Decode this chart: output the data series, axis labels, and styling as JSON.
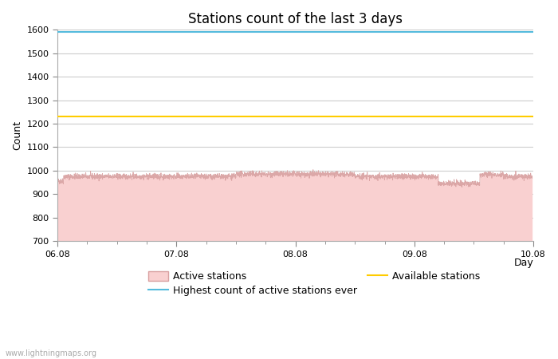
{
  "title": "Stations count of the last 3 days",
  "xlabel": "Day",
  "ylabel": "Count",
  "ylim": [
    700,
    1600
  ],
  "yticks": [
    700,
    800,
    900,
    1000,
    1100,
    1200,
    1300,
    1400,
    1500,
    1600
  ],
  "x_start": 0,
  "x_end": 4,
  "x_ticks": [
    0,
    1,
    2,
    3,
    4
  ],
  "x_tick_labels": [
    "06.08",
    "07.08",
    "08.08",
    "09.08",
    "10.08"
  ],
  "highest_ever_value": 1590,
  "available_stations_value": 1232,
  "active_stations_base": 700,
  "active_stations_color": "#f9d0d0",
  "active_stations_line_color": "#d8a0a0",
  "highest_color": "#55bbdd",
  "available_color": "#ffcc00",
  "background_color": "#ffffff",
  "grid_color": "#cccccc",
  "watermark": "www.lightningmaps.org",
  "title_fontsize": 12,
  "label_fontsize": 9,
  "tick_fontsize": 8,
  "legend_fontsize": 9
}
